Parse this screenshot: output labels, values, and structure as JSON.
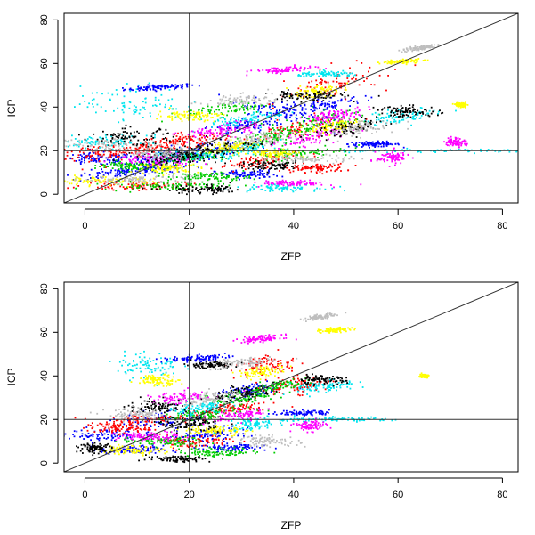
{
  "chart_data": [
    {
      "type": "scatter",
      "title": "",
      "xlabel": "ZFP",
      "ylabel": "ICP",
      "xlim": [
        -4,
        83
      ],
      "ylim": [
        -4,
        83
      ],
      "xticks": [
        0,
        20,
        40,
        60,
        80
      ],
      "yticks": [
        0,
        20,
        40,
        60,
        80
      ],
      "reference_lines": {
        "vertical_x": 20,
        "horizontal_y": 20,
        "diagonal": "y = x"
      },
      "grid": false,
      "legend": "none",
      "series": [
        {
          "color": "#0000ff",
          "clusters": [
            [
              14.5,
              49,
              3.5,
              0.6,
              8
            ],
            [
              7,
              10,
              4.5,
              1.2,
              14
            ],
            [
              38,
              38,
              5,
              2,
              -30
            ],
            [
              55.5,
              23,
              2.5,
              0.6,
              0
            ],
            [
              2.5,
              16,
              3.5,
              1.4,
              0
            ],
            [
              22,
              20,
              5,
              1.8,
              20
            ],
            [
              30,
              31,
              4,
              1.5,
              20
            ],
            [
              46,
              41,
              4,
              1.5,
              20
            ],
            [
              12,
              14,
              4,
              2,
              0
            ],
            [
              31,
              9,
              3,
              1,
              0
            ]
          ]
        },
        {
          "color": "#ff0000",
          "clusters": [
            [
              44,
              12,
              3,
              1,
              0
            ],
            [
              4,
              19,
              5,
              2,
              20
            ],
            [
              20,
              25,
              4,
              1.5,
              10
            ],
            [
              41,
              30,
              5,
              2,
              25
            ],
            [
              48,
              50,
              6,
              3,
              35
            ],
            [
              10,
              4,
              5,
              1,
              0
            ],
            [
              33,
              15,
              4,
              1.5,
              20
            ],
            [
              12,
              21,
              4,
              1.5,
              15
            ]
          ]
        },
        {
          "color": "#00cc00",
          "clusters": [
            [
              27,
              39,
              4,
              1.5,
              15
            ],
            [
              21,
              17,
              4,
              1.5,
              20
            ],
            [
              41,
              19,
              5,
              1.5,
              10
            ],
            [
              15,
              4,
              6,
              1,
              0
            ],
            [
              24,
              8,
              4,
              1,
              0
            ],
            [
              36,
              26,
              4,
              1.5,
              30
            ],
            [
              8,
              13,
              3,
              1.2,
              0
            ],
            [
              45,
              33,
              5,
              2,
              25
            ]
          ]
        },
        {
          "color": "#00e5ee",
          "clusters": [
            [
              9,
              42,
              5,
              4,
              0
            ],
            [
              61,
              36,
              4,
              1.5,
              15
            ],
            [
              67,
              20,
              12,
              0.4,
              0
            ],
            [
              19,
              18,
              3,
              1.5,
              0
            ],
            [
              31,
              34,
              4,
              1.5,
              20
            ],
            [
              47,
              55,
              3,
              0.6,
              0
            ],
            [
              30,
              20,
              4,
              1.5,
              30
            ],
            [
              37,
              3,
              4,
              0.8,
              0
            ],
            [
              4,
              24,
              4,
              1.5,
              0
            ]
          ]
        },
        {
          "color": "#ff00ff",
          "clusters": [
            [
              38,
              57,
              3,
              0.7,
              8
            ],
            [
              40,
              5,
              3,
              0.6,
              0
            ],
            [
              59,
              17,
              1.5,
              1.5,
              0
            ],
            [
              26,
              29,
              4,
              1.5,
              20
            ],
            [
              44,
              26,
              4,
              1.5,
              25
            ],
            [
              14,
              16,
              4,
              1.5,
              0
            ],
            [
              48,
              36,
              3,
              1.2,
              20
            ],
            [
              71,
              24,
              1,
              1,
              0
            ]
          ]
        },
        {
          "color": "#ffff00",
          "clusters": [
            [
              61,
              61,
              2,
              0.5,
              8
            ],
            [
              20,
              36,
              3,
              1.2,
              0
            ],
            [
              44,
              47,
              3,
              1.2,
              20
            ],
            [
              3,
              6,
              5,
              1,
              0
            ],
            [
              16,
              12,
              3,
              1,
              0
            ],
            [
              36,
              19,
              3,
              1,
              0
            ],
            [
              28,
              22,
              3,
              1,
              20
            ],
            [
              48,
              31,
              3,
              1.2,
              20
            ],
            [
              72,
              41,
              0.5,
              0.5,
              0
            ]
          ]
        },
        {
          "color": "#000000",
          "clusters": [
            [
              9,
              26,
              4,
              2,
              0
            ],
            [
              23,
              2,
              4,
              1,
              0
            ],
            [
              42,
              45,
              4,
              1.2,
              0
            ],
            [
              62,
              38,
              3,
              1.2,
              0
            ],
            [
              25,
              21,
              5,
              1.5,
              15
            ],
            [
              36,
              13,
              3,
              1,
              0
            ],
            [
              18,
              17,
              4,
              1.5,
              0
            ],
            [
              50,
              30,
              4,
              1.5,
              25
            ]
          ]
        },
        {
          "color": "#bebebe",
          "clusters": [
            [
              2,
              23,
              6,
              1.5,
              0
            ],
            [
              64,
              67,
              2,
              0.5,
              20
            ],
            [
              43,
              16,
              4,
              1,
              0
            ],
            [
              10,
              7,
              5,
              1,
              0
            ],
            [
              30,
              43,
              4,
              1.5,
              10
            ],
            [
              14,
              19,
              4,
              1.5,
              0
            ],
            [
              52,
              30,
              4,
              1.5,
              20
            ],
            [
              33,
              25,
              4,
              1.5,
              20
            ]
          ]
        }
      ]
    },
    {
      "type": "scatter",
      "title": "",
      "xlabel": "ZFP",
      "ylabel": "ICP",
      "xlim": [
        -4,
        83
      ],
      "ylim": [
        -4,
        83
      ],
      "xticks": [
        0,
        20,
        40,
        60,
        80
      ],
      "yticks": [
        0,
        20,
        40,
        60,
        80
      ],
      "reference_lines": {
        "vertical_x": 20,
        "horizontal_y": 20,
        "diagonal": "y = x"
      },
      "grid": false,
      "legend": "none",
      "series": [
        {
          "color": "#0000ff",
          "clusters": [
            [
              21,
              48,
              3,
              0.7,
              8
            ],
            [
              5,
              13,
              4,
              1.5,
              0
            ],
            [
              42,
              23,
              2.5,
              0.6,
              0
            ],
            [
              15,
              20,
              4,
              2,
              10
            ],
            [
              24,
              13,
              4,
              1.5,
              10
            ],
            [
              32,
              33,
              3,
              1.5,
              20
            ],
            [
              28,
              7,
              3,
              1,
              0
            ],
            [
              9,
              6,
              3,
              1,
              0
            ]
          ]
        },
        {
          "color": "#ff0000",
          "clusters": [
            [
              41,
              36,
              3,
              2,
              20
            ],
            [
              28,
              25,
              4,
              1.5,
              20
            ],
            [
              12,
              20,
              4,
              1.5,
              10
            ],
            [
              20,
              10,
              4,
              1.5,
              0
            ],
            [
              35,
              45,
              3,
              2,
              25
            ],
            [
              6,
              16,
              3,
              1.2,
              0
            ]
          ]
        },
        {
          "color": "#00cc00",
          "clusters": [
            [
              22,
              22,
              4,
              1.5,
              15
            ],
            [
              15,
              10,
              4,
              1.2,
              0
            ],
            [
              30,
              30,
              3,
              1.5,
              20
            ],
            [
              26,
              5,
              4,
              1,
              0
            ],
            [
              36,
              35,
              3,
              1.2,
              25
            ]
          ]
        },
        {
          "color": "#00e5ee",
          "clusters": [
            [
              12,
              45,
              3,
              3,
              0
            ],
            [
              46,
              35,
              3,
              1.5,
              15
            ],
            [
              50,
              20,
              6,
              0.4,
              0
            ],
            [
              22,
              25,
              3,
              1.5,
              20
            ],
            [
              32,
              18,
              3,
              1.2,
              20
            ]
          ]
        },
        {
          "color": "#ff00ff",
          "clusters": [
            [
              34,
              57,
              2,
              0.7,
              8
            ],
            [
              43,
              17,
              1.5,
              1.2,
              0
            ],
            [
              18,
              30,
              3,
              1.5,
              20
            ],
            [
              30,
              22,
              3,
              1.2,
              20
            ],
            [
              12,
              12,
              3,
              1.2,
              0
            ]
          ]
        },
        {
          "color": "#ffff00",
          "clusters": [
            [
              48,
              61,
              1.5,
              0.5,
              8
            ],
            [
              14,
              38,
              2,
              1.2,
              0
            ],
            [
              34,
              42,
              2.5,
              1.2,
              20
            ],
            [
              9,
              6,
              3,
              1,
              0
            ],
            [
              25,
              15,
              3,
              1.2,
              0
            ],
            [
              65,
              40,
              0.4,
              0.4,
              0
            ]
          ]
        },
        {
          "color": "#000000",
          "clusters": [
            [
              24,
              45,
              2.5,
              0.8,
              0
            ],
            [
              45,
              38,
              2.5,
              1,
              0
            ],
            [
              2,
              7,
              1.5,
              1,
              0
            ],
            [
              18,
              2,
              3,
              0.8,
              0
            ],
            [
              14,
              26,
              3,
              1.5,
              0
            ],
            [
              30,
              32,
              3,
              1.5,
              20
            ],
            [
              20,
              18,
              3,
              1.5,
              0
            ]
          ]
        },
        {
          "color": "#bebebe",
          "clusters": [
            [
              45,
              67,
              1.5,
              0.5,
              20
            ],
            [
              10,
              22,
              3,
              1.5,
              0
            ],
            [
              30,
              46,
              3,
              1.2,
              10
            ],
            [
              35,
              10,
              3,
              1.2,
              0
            ],
            [
              24,
              30,
              3,
              1.5,
              20
            ]
          ]
        }
      ]
    }
  ]
}
